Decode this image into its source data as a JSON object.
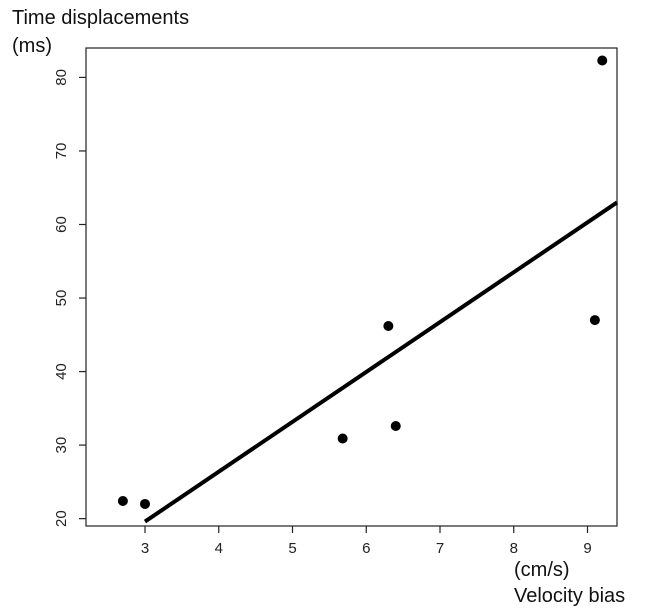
{
  "chart_data": {
    "type": "scatter",
    "title": "",
    "ylabel_line1": "Time displacements",
    "ylabel_line2": "(ms)",
    "xlabel_unit": "(cm/s)",
    "xlabel_name": "Velocity bias",
    "xlim": [
      2.2,
      9.4
    ],
    "ylim": [
      19,
      84
    ],
    "x_ticks": [
      3,
      4,
      5,
      6,
      7,
      8,
      9
    ],
    "y_ticks": [
      20,
      30,
      40,
      50,
      60,
      70,
      80
    ],
    "points": [
      {
        "x": 2.7,
        "y": 22.4
      },
      {
        "x": 3.0,
        "y": 22.0
      },
      {
        "x": 5.68,
        "y": 30.9
      },
      {
        "x": 6.3,
        "y": 46.2
      },
      {
        "x": 6.4,
        "y": 32.6
      },
      {
        "x": 9.1,
        "y": 47.0
      },
      {
        "x": 9.2,
        "y": 82.3
      }
    ],
    "fit_line": {
      "x": [
        3.0,
        9.4
      ],
      "y": [
        19.6,
        63.0
      ]
    },
    "grid": false,
    "legend": "none"
  }
}
